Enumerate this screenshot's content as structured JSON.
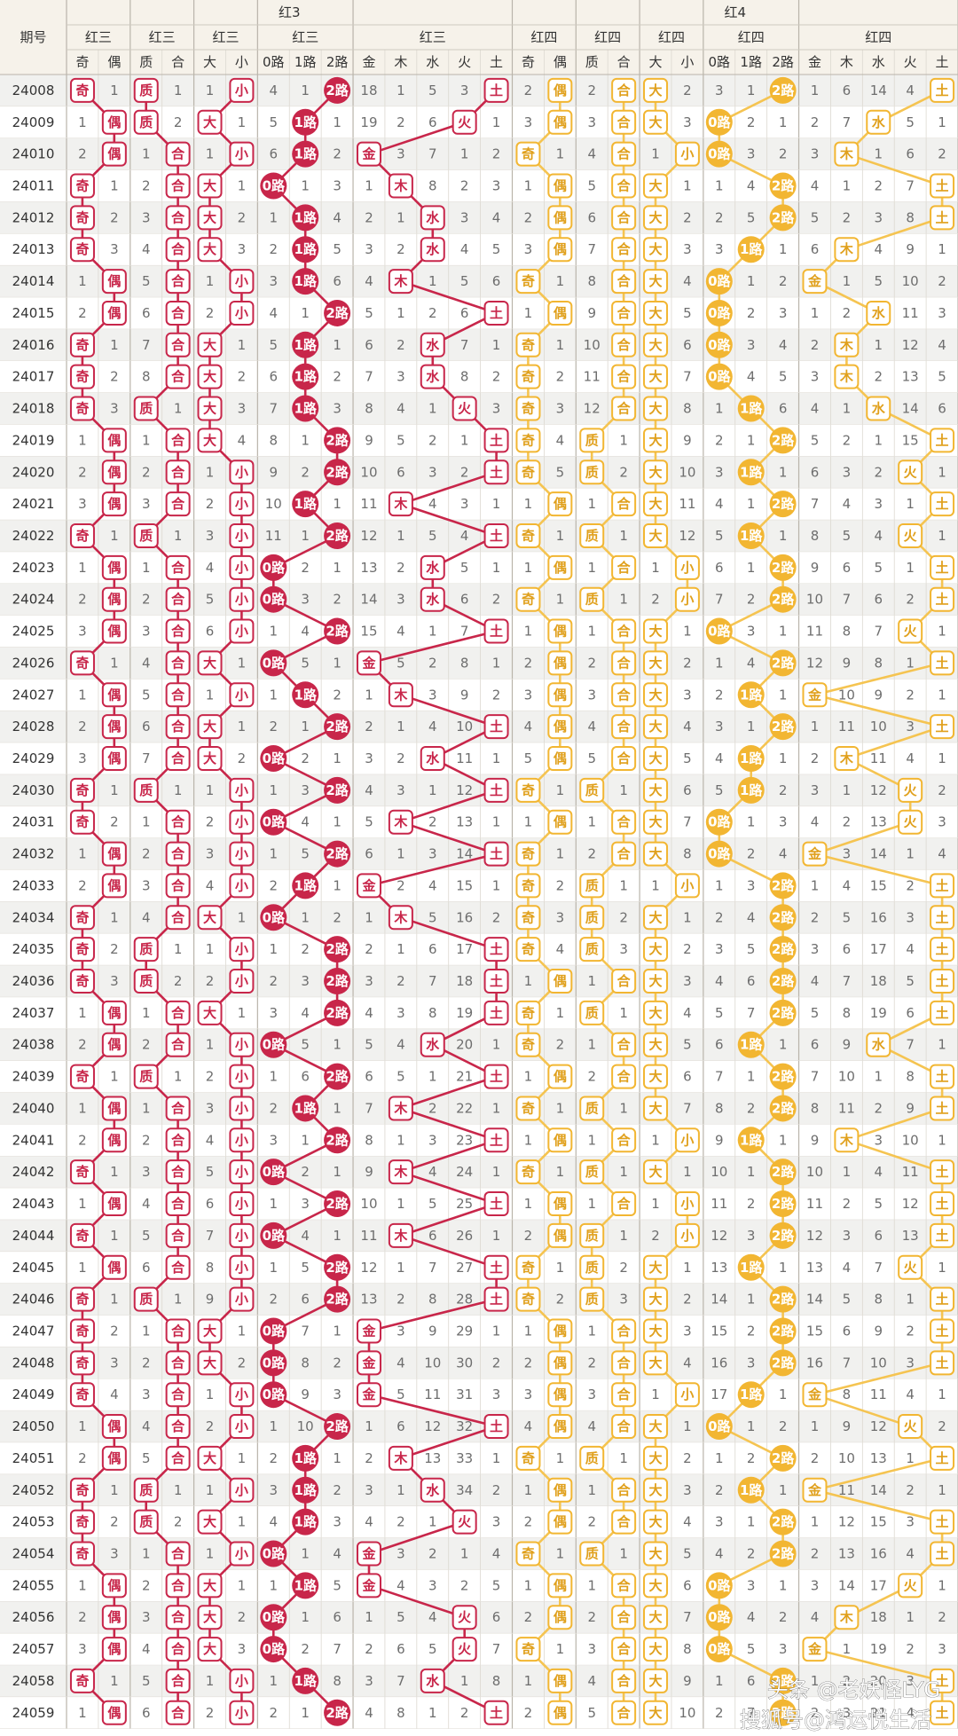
{
  "header": {
    "period_label": "期号",
    "groups": [
      {
        "title": "红3",
        "subgroups": [
          {
            "title": "红三",
            "columns": [
              "奇",
              "偶"
            ]
          },
          {
            "title": "红三",
            "columns": [
              "质",
              "合"
            ]
          },
          {
            "title": "红三",
            "columns": [
              "大",
              "小"
            ]
          },
          {
            "title": "红三",
            "columns": [
              "0路",
              "1路",
              "2路"
            ]
          },
          {
            "title": "红三",
            "columns": [
              "金",
              "木",
              "水",
              "火",
              "土"
            ]
          }
        ]
      },
      {
        "title": "红4",
        "subgroups": [
          {
            "title": "红四",
            "columns": [
              "奇",
              "偶"
            ]
          },
          {
            "title": "红四",
            "columns": [
              "质",
              "合"
            ]
          },
          {
            "title": "红四",
            "columns": [
              "大",
              "小"
            ]
          },
          {
            "title": "红四",
            "columns": [
              "0路",
              "1路",
              "2路"
            ]
          },
          {
            "title": "红四",
            "columns": [
              "金",
              "木",
              "水",
              "火",
              "土"
            ]
          }
        ]
      }
    ]
  },
  "rows": [
    [
      24008,
      "奇",
      1,
      "质",
      1,
      1,
      "小",
      4,
      1,
      "2路",
      18,
      1,
      5,
      3,
      "土",
      2,
      "偶",
      2,
      "合",
      "大",
      2,
      3,
      1,
      "2路",
      1,
      6,
      14,
      4,
      "土"
    ],
    [
      24009,
      1,
      "偶",
      "质",
      2,
      "大",
      1,
      5,
      "1路",
      1,
      19,
      2,
      6,
      "火",
      1,
      3,
      "偶",
      3,
      "合",
      "大",
      3,
      "0路",
      2,
      1,
      2,
      7,
      "水",
      5,
      1
    ],
    [
      24010,
      2,
      "偶",
      1,
      "合",
      1,
      "小",
      6,
      "1路",
      2,
      "金",
      3,
      7,
      1,
      2,
      "奇",
      1,
      4,
      "合",
      1,
      "小",
      "0路",
      3,
      2,
      3,
      "木",
      1,
      6,
      2
    ],
    [
      24011,
      "奇",
      1,
      2,
      "合",
      "大",
      1,
      "0路",
      1,
      3,
      1,
      "木",
      8,
      2,
      3,
      1,
      "偶",
      5,
      "合",
      "大",
      1,
      1,
      4,
      "2路",
      4,
      1,
      2,
      7,
      "土"
    ],
    [
      24012,
      "奇",
      2,
      3,
      "合",
      "大",
      2,
      1,
      "1路",
      4,
      2,
      1,
      "水",
      3,
      4,
      2,
      "偶",
      6,
      "合",
      "大",
      2,
      2,
      5,
      "2路",
      5,
      2,
      3,
      8,
      "土"
    ],
    [
      24013,
      "奇",
      3,
      4,
      "合",
      "大",
      3,
      2,
      "1路",
      5,
      3,
      2,
      "水",
      4,
      5,
      3,
      "偶",
      7,
      "合",
      "大",
      3,
      3,
      "1路",
      1,
      6,
      "木",
      4,
      9,
      1
    ],
    [
      24014,
      1,
      "偶",
      5,
      "合",
      1,
      "小",
      3,
      "1路",
      6,
      4,
      "木",
      1,
      5,
      6,
      "奇",
      1,
      8,
      "合",
      "大",
      4,
      "0路",
      1,
      2,
      "金",
      1,
      5,
      10,
      2
    ],
    [
      24015,
      2,
      "偶",
      6,
      "合",
      2,
      "小",
      4,
      1,
      "2路",
      5,
      1,
      2,
      6,
      "土",
      1,
      "偶",
      9,
      "合",
      "大",
      5,
      "0路",
      2,
      3,
      1,
      2,
      "水",
      11,
      3
    ],
    [
      24016,
      "奇",
      1,
      7,
      "合",
      "大",
      1,
      5,
      "1路",
      1,
      6,
      2,
      "水",
      7,
      1,
      "奇",
      1,
      10,
      "合",
      "大",
      6,
      "0路",
      3,
      4,
      2,
      "木",
      1,
      12,
      4
    ],
    [
      24017,
      "奇",
      2,
      8,
      "合",
      "大",
      2,
      6,
      "1路",
      2,
      7,
      3,
      "水",
      8,
      2,
      "奇",
      2,
      11,
      "合",
      "大",
      7,
      "0路",
      4,
      5,
      3,
      "木",
      2,
      13,
      5
    ],
    [
      24018,
      "奇",
      3,
      "质",
      1,
      "大",
      3,
      7,
      "1路",
      3,
      8,
      4,
      1,
      "火",
      3,
      "奇",
      3,
      12,
      "合",
      "大",
      8,
      1,
      "1路",
      6,
      4,
      1,
      "水",
      14,
      6
    ],
    [
      24019,
      1,
      "偶",
      1,
      "合",
      "大",
      4,
      8,
      1,
      "2路",
      9,
      5,
      2,
      1,
      "土",
      "奇",
      4,
      "质",
      1,
      "大",
      9,
      2,
      1,
      "2路",
      5,
      2,
      1,
      15,
      "土"
    ],
    [
      24020,
      2,
      "偶",
      2,
      "合",
      1,
      "小",
      9,
      2,
      "2路",
      10,
      6,
      3,
      2,
      "土",
      "奇",
      5,
      "质",
      2,
      "大",
      10,
      3,
      "1路",
      1,
      6,
      3,
      2,
      "火",
      1
    ],
    [
      24021,
      3,
      "偶",
      3,
      "合",
      2,
      "小",
      10,
      "1路",
      1,
      11,
      "木",
      4,
      3,
      1,
      1,
      "偶",
      1,
      "合",
      "大",
      11,
      4,
      1,
      "2路",
      7,
      4,
      3,
      1,
      "土"
    ],
    [
      24022,
      "奇",
      1,
      "质",
      1,
      3,
      "小",
      11,
      1,
      "2路",
      12,
      1,
      5,
      4,
      "土",
      "奇",
      1,
      "质",
      1,
      "大",
      12,
      5,
      "1路",
      1,
      8,
      5,
      4,
      "火",
      1
    ],
    [
      24023,
      1,
      "偶",
      1,
      "合",
      4,
      "小",
      "0路",
      2,
      1,
      13,
      2,
      "水",
      5,
      1,
      1,
      "偶",
      1,
      "合",
      1,
      "小",
      6,
      1,
      "2路",
      9,
      6,
      5,
      1,
      "土"
    ],
    [
      24024,
      2,
      "偶",
      2,
      "合",
      5,
      "小",
      "0路",
      3,
      2,
      14,
      3,
      "水",
      6,
      2,
      "奇",
      1,
      "质",
      1,
      2,
      "小",
      7,
      2,
      "2路",
      10,
      7,
      6,
      2,
      "土"
    ],
    [
      24025,
      3,
      "偶",
      3,
      "合",
      6,
      "小",
      1,
      4,
      "2路",
      15,
      4,
      1,
      7,
      "土",
      1,
      "偶",
      1,
      "合",
      "大",
      1,
      "0路",
      3,
      1,
      11,
      8,
      7,
      "火",
      1
    ],
    [
      24026,
      "奇",
      1,
      4,
      "合",
      "大",
      1,
      "0路",
      5,
      1,
      "金",
      5,
      2,
      8,
      1,
      2,
      "偶",
      2,
      "合",
      "大",
      2,
      1,
      4,
      "2路",
      12,
      9,
      8,
      1,
      "土"
    ],
    [
      24027,
      1,
      "偶",
      5,
      "合",
      1,
      "小",
      1,
      "1路",
      2,
      1,
      "木",
      3,
      9,
      2,
      3,
      "偶",
      3,
      "合",
      "大",
      3,
      2,
      "1路",
      1,
      "金",
      10,
      9,
      2,
      1
    ],
    [
      24028,
      2,
      "偶",
      6,
      "合",
      "大",
      1,
      2,
      1,
      "2路",
      2,
      1,
      4,
      10,
      "土",
      4,
      "偶",
      4,
      "合",
      "大",
      4,
      3,
      1,
      "2路",
      1,
      11,
      10,
      3,
      "土"
    ],
    [
      24029,
      3,
      "偶",
      7,
      "合",
      "大",
      2,
      "0路",
      2,
      1,
      3,
      2,
      "水",
      11,
      1,
      5,
      "偶",
      5,
      "合",
      "大",
      5,
      4,
      "1路",
      1,
      2,
      "木",
      11,
      4,
      1
    ],
    [
      24030,
      "奇",
      1,
      "质",
      1,
      1,
      "小",
      1,
      3,
      "2路",
      4,
      3,
      1,
      12,
      "土",
      "奇",
      1,
      "质",
      1,
      "大",
      6,
      5,
      "1路",
      2,
      3,
      1,
      12,
      "火",
      2
    ],
    [
      24031,
      "奇",
      2,
      1,
      "合",
      2,
      "小",
      "0路",
      4,
      1,
      5,
      "木",
      2,
      13,
      1,
      1,
      "偶",
      1,
      "合",
      "大",
      7,
      "0路",
      1,
      3,
      4,
      2,
      13,
      "火",
      3
    ],
    [
      24032,
      1,
      "偶",
      2,
      "合",
      3,
      "小",
      1,
      5,
      "2路",
      6,
      1,
      3,
      14,
      "土",
      "奇",
      1,
      2,
      "合",
      "大",
      8,
      "0路",
      2,
      4,
      "金",
      3,
      14,
      1,
      4
    ],
    [
      24033,
      2,
      "偶",
      3,
      "合",
      4,
      "小",
      2,
      "1路",
      1,
      "金",
      2,
      4,
      15,
      1,
      "奇",
      2,
      "质",
      1,
      1,
      "小",
      1,
      3,
      "2路",
      1,
      4,
      15,
      2,
      "土"
    ],
    [
      24034,
      "奇",
      1,
      4,
      "合",
      "大",
      1,
      "0路",
      1,
      2,
      1,
      "木",
      5,
      16,
      2,
      "奇",
      3,
      "质",
      2,
      "大",
      1,
      2,
      4,
      "2路",
      2,
      5,
      16,
      3,
      "土"
    ],
    [
      24035,
      "奇",
      2,
      "质",
      1,
      1,
      "小",
      1,
      2,
      "2路",
      2,
      1,
      6,
      17,
      "土",
      "奇",
      4,
      "质",
      3,
      "大",
      2,
      3,
      5,
      "2路",
      3,
      6,
      17,
      4,
      "土"
    ],
    [
      24036,
      "奇",
      3,
      "质",
      2,
      2,
      "小",
      2,
      3,
      "2路",
      3,
      2,
      7,
      18,
      "土",
      1,
      "偶",
      1,
      "合",
      "大",
      3,
      4,
      6,
      "2路",
      4,
      7,
      18,
      5,
      "土"
    ],
    [
      24037,
      1,
      "偶",
      1,
      "合",
      "大",
      1,
      3,
      4,
      "2路",
      4,
      3,
      8,
      19,
      "土",
      "奇",
      1,
      "质",
      1,
      "大",
      4,
      5,
      7,
      "2路",
      5,
      8,
      19,
      6,
      "土"
    ],
    [
      24038,
      2,
      "偶",
      2,
      "合",
      1,
      "小",
      "0路",
      5,
      1,
      5,
      4,
      "水",
      20,
      1,
      "奇",
      2,
      1,
      "合",
      "大",
      5,
      6,
      "1路",
      1,
      6,
      9,
      "水",
      7,
      1
    ],
    [
      24039,
      "奇",
      1,
      "质",
      1,
      2,
      "小",
      1,
      6,
      "2路",
      6,
      5,
      1,
      21,
      "土",
      1,
      "偶",
      2,
      "合",
      "大",
      6,
      7,
      1,
      "2路",
      7,
      10,
      1,
      8,
      "土"
    ],
    [
      24040,
      1,
      "偶",
      1,
      "合",
      3,
      "小",
      2,
      "1路",
      1,
      7,
      "木",
      2,
      22,
      1,
      "奇",
      1,
      "质",
      1,
      "大",
      7,
      8,
      2,
      "2路",
      8,
      11,
      2,
      9,
      "土"
    ],
    [
      24041,
      2,
      "偶",
      2,
      "合",
      4,
      "小",
      3,
      1,
      "2路",
      8,
      1,
      3,
      23,
      "土",
      1,
      "偶",
      1,
      "合",
      1,
      "小",
      9,
      "1路",
      1,
      9,
      "木",
      3,
      10,
      1
    ],
    [
      24042,
      "奇",
      1,
      3,
      "合",
      5,
      "小",
      "0路",
      2,
      1,
      9,
      "木",
      4,
      24,
      1,
      "奇",
      1,
      "质",
      1,
      "大",
      1,
      10,
      1,
      "2路",
      10,
      1,
      4,
      11,
      "土"
    ],
    [
      24043,
      1,
      "偶",
      4,
      "合",
      6,
      "小",
      1,
      3,
      "2路",
      10,
      1,
      5,
      25,
      "土",
      1,
      "偶",
      1,
      "合",
      1,
      "小",
      11,
      2,
      "2路",
      11,
      2,
      5,
      12,
      "土"
    ],
    [
      24044,
      "奇",
      1,
      5,
      "合",
      7,
      "小",
      "0路",
      4,
      1,
      11,
      "木",
      6,
      26,
      1,
      2,
      "偶",
      "质",
      1,
      2,
      "小",
      12,
      3,
      "2路",
      12,
      3,
      6,
      13,
      "土"
    ],
    [
      24045,
      1,
      "偶",
      6,
      "合",
      8,
      "小",
      1,
      5,
      "2路",
      12,
      1,
      7,
      27,
      "土",
      "奇",
      1,
      "质",
      2,
      "大",
      1,
      13,
      "1路",
      1,
      13,
      4,
      7,
      "火",
      1
    ],
    [
      24046,
      "奇",
      1,
      "质",
      1,
      9,
      "小",
      2,
      6,
      "2路",
      13,
      2,
      8,
      28,
      "土",
      "奇",
      2,
      "质",
      3,
      "大",
      2,
      14,
      1,
      "2路",
      14,
      5,
      8,
      1,
      "土"
    ],
    [
      24047,
      "奇",
      2,
      1,
      "合",
      "大",
      1,
      "0路",
      7,
      1,
      "金",
      3,
      9,
      29,
      1,
      1,
      "偶",
      1,
      "合",
      "大",
      3,
      15,
      2,
      "2路",
      15,
      6,
      9,
      2,
      "土"
    ],
    [
      24048,
      "奇",
      3,
      2,
      "合",
      "大",
      2,
      "0路",
      8,
      2,
      "金",
      4,
      10,
      30,
      2,
      2,
      "偶",
      2,
      "合",
      "大",
      4,
      16,
      3,
      "2路",
      16,
      7,
      10,
      3,
      "土"
    ],
    [
      24049,
      "奇",
      4,
      3,
      "合",
      1,
      "小",
      "0路",
      9,
      3,
      "金",
      5,
      11,
      31,
      3,
      3,
      "偶",
      3,
      "合",
      1,
      "小",
      17,
      "1路",
      1,
      "金",
      8,
      11,
      4,
      1
    ],
    [
      24050,
      1,
      "偶",
      4,
      "合",
      2,
      "小",
      1,
      10,
      "2路",
      1,
      6,
      12,
      32,
      "土",
      4,
      "偶",
      4,
      "合",
      "大",
      1,
      "0路",
      1,
      2,
      1,
      9,
      12,
      "火",
      2
    ],
    [
      24051,
      2,
      "偶",
      5,
      "合",
      "大",
      1,
      2,
      "1路",
      1,
      2,
      "木",
      13,
      33,
      1,
      "奇",
      1,
      "质",
      1,
      "大",
      2,
      1,
      2,
      "2路",
      2,
      10,
      13,
      1,
      "土"
    ],
    [
      24052,
      "奇",
      1,
      "质",
      1,
      1,
      "小",
      3,
      "1路",
      2,
      3,
      1,
      "水",
      34,
      2,
      1,
      "偶",
      1,
      "合",
      "大",
      3,
      2,
      "1路",
      1,
      "金",
      11,
      14,
      2,
      1
    ],
    [
      24053,
      "奇",
      2,
      "质",
      2,
      "大",
      1,
      4,
      "1路",
      3,
      4,
      2,
      1,
      "火",
      3,
      2,
      "偶",
      2,
      "合",
      "大",
      4,
      3,
      1,
      "2路",
      1,
      12,
      15,
      3,
      "土"
    ],
    [
      24054,
      "奇",
      3,
      1,
      "合",
      1,
      "小",
      "0路",
      1,
      4,
      "金",
      3,
      2,
      1,
      4,
      "奇",
      1,
      "质",
      1,
      "大",
      5,
      4,
      2,
      "2路",
      2,
      13,
      16,
      4,
      "土"
    ],
    [
      24055,
      1,
      "偶",
      2,
      "合",
      "大",
      1,
      1,
      "1路",
      5,
      "金",
      4,
      3,
      2,
      5,
      1,
      "偶",
      1,
      "合",
      "大",
      6,
      "0路",
      3,
      1,
      3,
      14,
      17,
      "火",
      1
    ],
    [
      24056,
      2,
      "偶",
      3,
      "合",
      "大",
      2,
      "0路",
      1,
      6,
      1,
      5,
      4,
      "火",
      6,
      2,
      "偶",
      2,
      "合",
      "大",
      7,
      "0路",
      4,
      2,
      4,
      "木",
      18,
      1,
      2
    ],
    [
      24057,
      3,
      "偶",
      4,
      "合",
      "大",
      3,
      "0路",
      2,
      7,
      2,
      6,
      5,
      "火",
      7,
      "奇",
      1,
      3,
      "合",
      "大",
      8,
      "0路",
      5,
      3,
      "金",
      1,
      19,
      2,
      3
    ],
    [
      24058,
      "奇",
      1,
      5,
      "合",
      1,
      "小",
      1,
      "1路",
      8,
      3,
      7,
      "水",
      1,
      8,
      1,
      "偶",
      4,
      "合",
      "大",
      9,
      1,
      6,
      "2路",
      1,
      2,
      20,
      3,
      "土"
    ],
    [
      24059,
      1,
      "偶",
      6,
      "合",
      2,
      "小",
      2,
      1,
      "2路",
      4,
      8,
      1,
      2,
      "土",
      2,
      "偶",
      5,
      "合",
      "大",
      10,
      2,
      7,
      "2路",
      2,
      3,
      21,
      4,
      "土"
    ]
  ],
  "watermarks": [
    "头条 @老妖怪LYG",
    "搜狐号@鸿运悦生活"
  ]
}
